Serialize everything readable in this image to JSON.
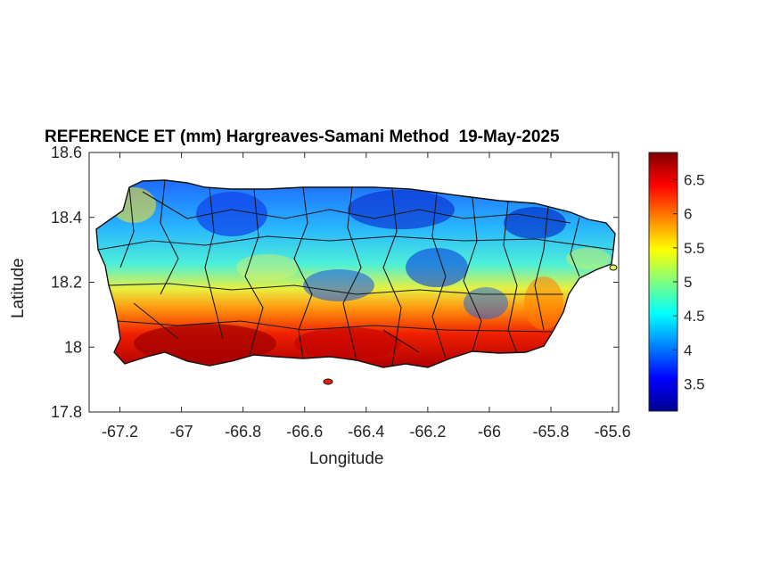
{
  "title": "REFERENCE ET (mm) Hargreaves-Samani Method  19-May-2025",
  "axes": {
    "xlabel": "Longitude",
    "ylabel": "Latitude",
    "xticks": [
      "-67.2",
      "-67",
      "-66.8",
      "-66.6",
      "-66.4",
      "-66.2",
      "-66",
      "-65.8",
      "-65.6"
    ],
    "yticks": [
      "18.6",
      "18.4",
      "18.2",
      "18",
      "17.8"
    ]
  },
  "colorbar": {
    "ticks": [
      "6.5",
      "6",
      "5.5",
      "5",
      "4.5",
      "4",
      "3.5"
    ],
    "colormap": "jet",
    "range": [
      3.1,
      6.9
    ]
  },
  "chart_data": {
    "type": "heatmap",
    "title": "REFERENCE ET (mm) Hargreaves-Samani Method  19-May-2025",
    "xlabel": "Longitude",
    "ylabel": "Latitude",
    "xlim": [
      -67.3,
      -65.58
    ],
    "ylim": [
      17.8,
      18.6
    ],
    "region": "Puerto Rico",
    "value_range": [
      3.1,
      6.9
    ],
    "pattern": "Highest values (6-6.9) along southern coast, lowest (3.2-4) in northern interior and east"
  }
}
